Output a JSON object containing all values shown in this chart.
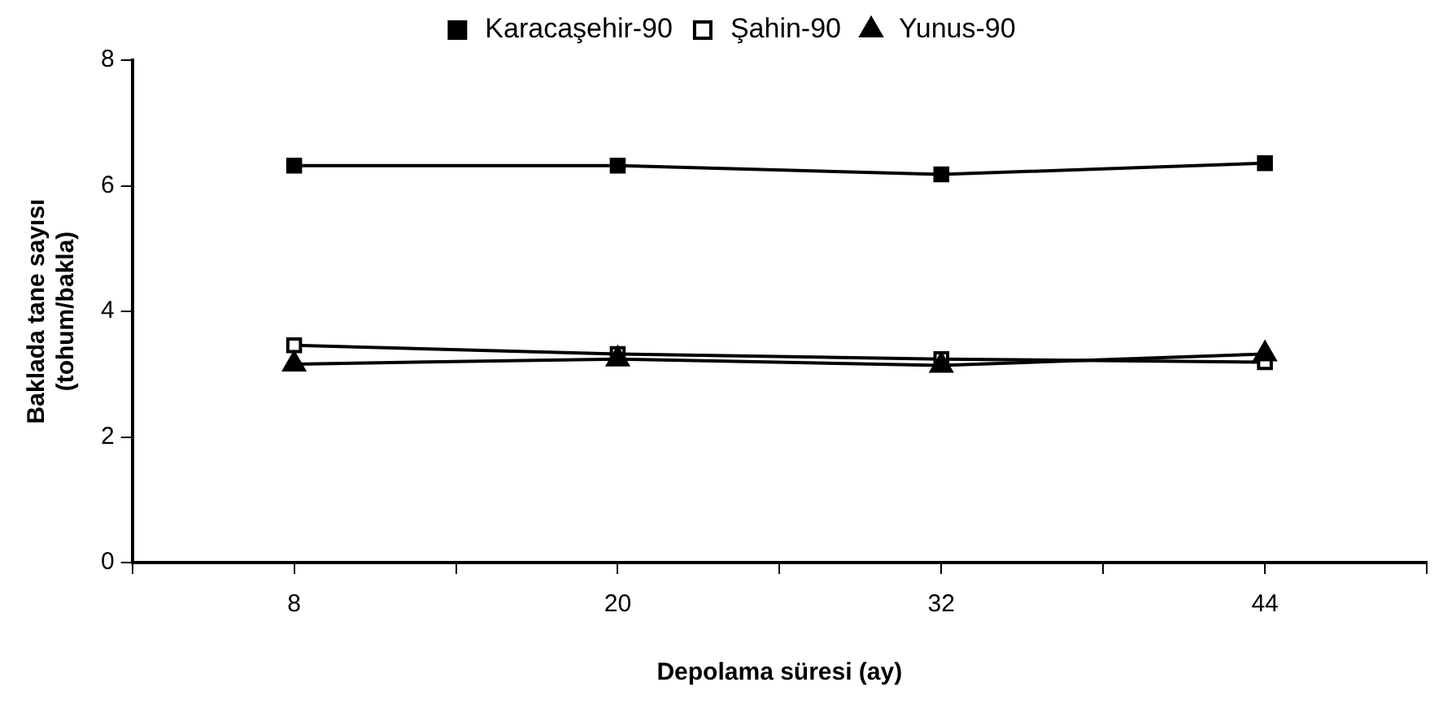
{
  "chart_data": {
    "type": "line",
    "xlabel": "Depolama süresi (ay)",
    "ylabel": "Baklada tane sayısı (tohum/bakla)",
    "x": [
      8,
      20,
      32,
      44
    ],
    "xlim": [
      2,
      50
    ],
    "xticks": [
      {
        "value": 2,
        "label": null
      },
      8,
      {
        "value": 14,
        "label": null
      },
      20,
      {
        "value": 26,
        "label": null
      },
      32,
      {
        "value": 38,
        "label": null
      },
      44,
      {
        "value": 50,
        "label": null
      }
    ],
    "ylim": [
      0,
      8
    ],
    "yticks": [
      0,
      2,
      4,
      6,
      8
    ],
    "series": [
      {
        "name": "Karacaşehir-90",
        "color": "#000000",
        "marker": "square",
        "values": [
          6.32,
          6.32,
          6.18,
          6.36
        ]
      },
      {
        "name": "Şahin-90",
        "color": "#000000",
        "marker": "square",
        "colors": [
          "#ffffff",
          "#ffffff",
          "#ffffff",
          "#ffffff"
        ],
        "values": [
          3.46,
          3.32,
          3.24,
          3.19
        ]
      },
      {
        "name": "Yunus-90",
        "color": "#000000",
        "marker": "triangle",
        "values": [
          3.16,
          3.24,
          3.14,
          3.32
        ]
      }
    ],
    "grid": false,
    "legend": "top",
    "line_style": "solid"
  }
}
